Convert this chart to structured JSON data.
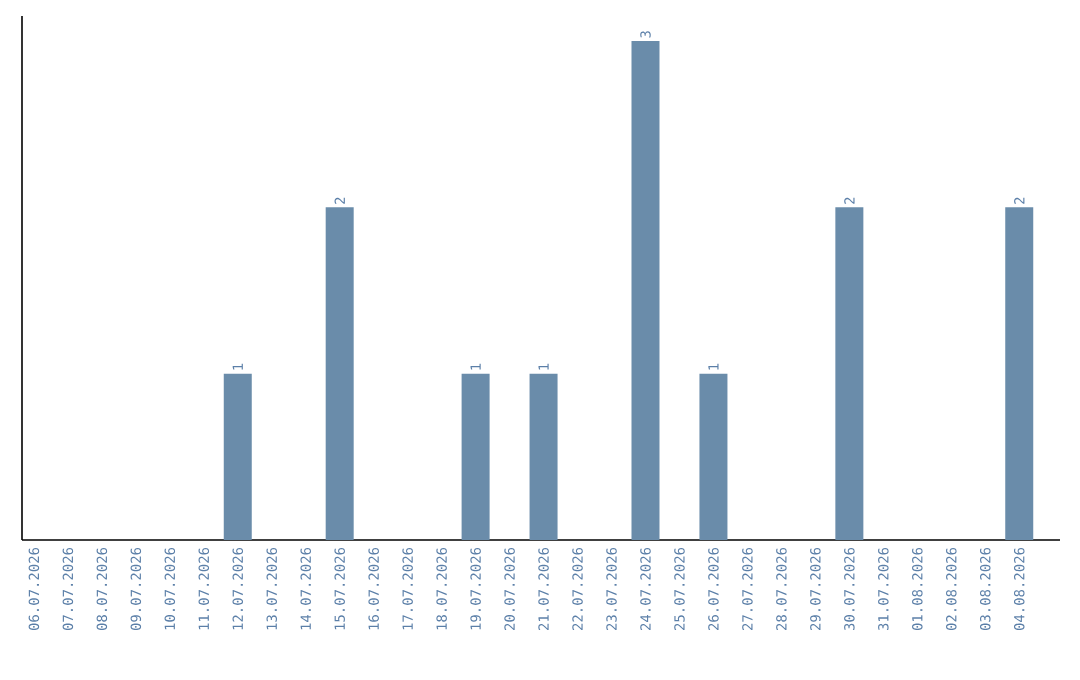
{
  "chart_data": {
    "type": "bar",
    "categories": [
      "06.07.2026",
      "07.07.2026",
      "08.07.2026",
      "09.07.2026",
      "10.07.2026",
      "11.07.2026",
      "12.07.2026",
      "13.07.2026",
      "14.07.2026",
      "15.07.2026",
      "16.07.2026",
      "17.07.2026",
      "18.07.2026",
      "19.07.2026",
      "20.07.2026",
      "21.07.2026",
      "22.07.2026",
      "23.07.2026",
      "24.07.2026",
      "25.07.2026",
      "26.07.2026",
      "27.07.2026",
      "28.07.2026",
      "29.07.2026",
      "30.07.2026",
      "31.07.2026",
      "01.08.2026",
      "02.08.2026",
      "03.08.2026",
      "04.08.2026"
    ],
    "values": [
      0,
      0,
      0,
      0,
      0,
      0,
      1,
      0,
      0,
      2,
      0,
      0,
      0,
      1,
      0,
      1,
      0,
      0,
      3,
      0,
      1,
      0,
      0,
      0,
      2,
      0,
      0,
      0,
      0,
      2
    ],
    "value_labels": [
      null,
      null,
      null,
      null,
      null,
      null,
      "1",
      null,
      null,
      "2",
      null,
      null,
      null,
      "1",
      null,
      "1",
      null,
      null,
      "3",
      null,
      "1",
      null,
      null,
      null,
      "2",
      null,
      null,
      null,
      null,
      "2"
    ],
    "color": "#6a8caa",
    "ylim": [
      0,
      3.15
    ],
    "tick_labels": "x"
  }
}
